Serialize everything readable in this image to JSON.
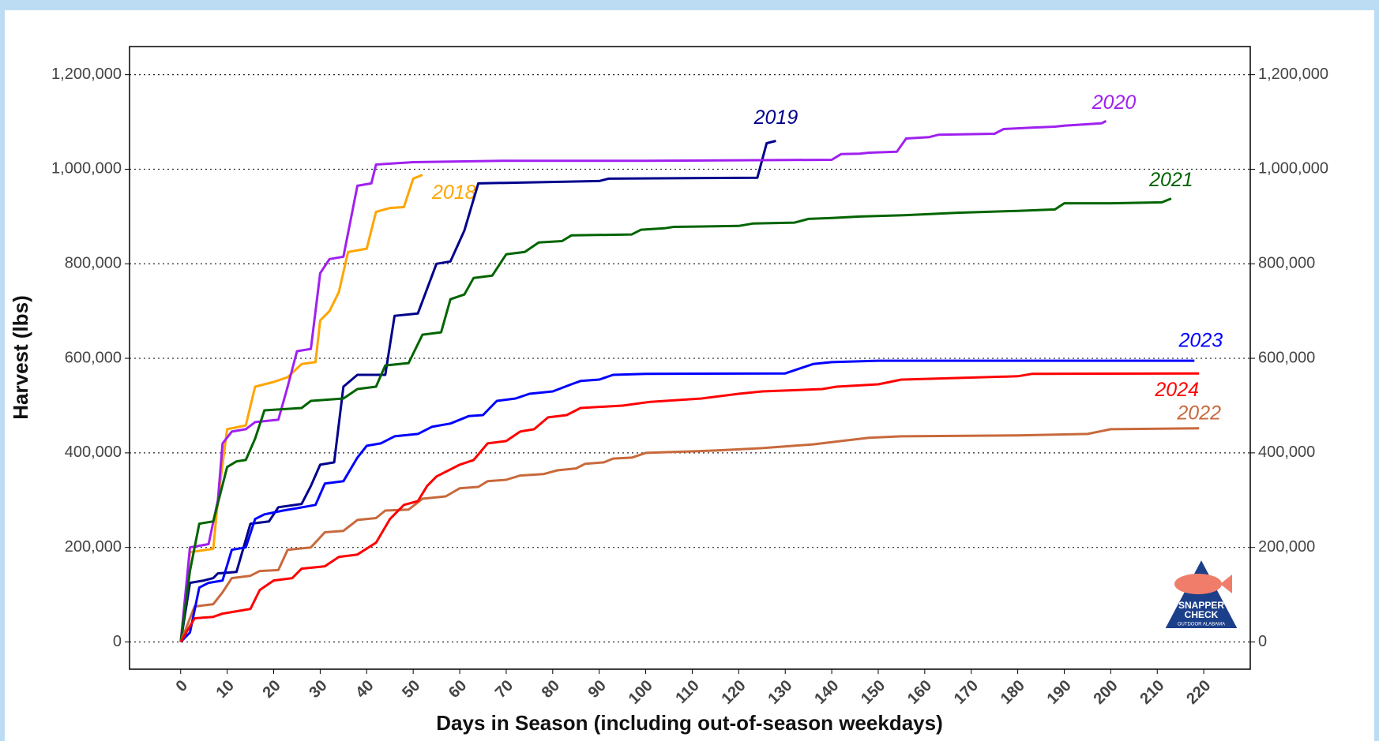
{
  "chart_data": {
    "type": "line",
    "x_label": "Days in Season (including out-of-season weekdays)",
    "y_label": "Harvest (lbs)",
    "xlim": [
      -11,
      230
    ],
    "ylim": [
      -57600,
      1259500
    ],
    "y2lim": [
      -57600,
      1259500
    ],
    "xticks": [
      0,
      10,
      20,
      30,
      40,
      50,
      60,
      70,
      80,
      90,
      100,
      110,
      120,
      130,
      140,
      150,
      160,
      170,
      180,
      190,
      200,
      210,
      220
    ],
    "yticks": [
      0,
      {
        "value": 200000,
        "label": "200,000"
      },
      {
        "value": 400000,
        "label": "400,000"
      },
      {
        "value": 600000,
        "label": "600,000"
      },
      {
        "value": 800000,
        "label": "800,000"
      },
      {
        "value": 1000000,
        "label": "1,000,000"
      },
      {
        "value": 1200000,
        "label": "1,200,000"
      }
    ],
    "y2ticks": [
      0,
      {
        "value": 200000,
        "label": "200,000"
      },
      {
        "value": 400000,
        "label": "400,000"
      },
      {
        "value": 600000,
        "label": "600,000"
      },
      {
        "value": 800000,
        "label": "800,000"
      },
      {
        "value": 1000000,
        "label": "1,000,000"
      },
      {
        "value": 1200000,
        "label": "1,200,000"
      }
    ],
    "grid": true,
    "series": [
      {
        "name": "2018",
        "color": "#ffa500",
        "x": [
          0,
          2,
          7,
          8,
          10,
          14,
          16,
          20,
          23,
          26,
          29,
          30,
          32,
          34,
          36,
          40,
          42,
          45,
          48,
          50,
          52
        ],
        "values": [
          0,
          190000,
          197000,
          300000,
          450000,
          458000,
          540000,
          550000,
          560000,
          588000,
          592000,
          680000,
          700000,
          740000,
          825000,
          832000,
          910000,
          918000,
          920000,
          980000,
          988000
        ]
      },
      {
        "name": "2019",
        "color": "#00008b",
        "x": [
          0,
          2,
          5,
          7,
          8,
          12,
          15,
          19,
          21,
          26,
          28,
          30,
          33,
          35,
          38,
          44,
          46,
          51,
          55,
          58,
          61,
          64,
          90,
          92,
          124,
          126,
          128
        ],
        "values": [
          0,
          125000,
          130000,
          135000,
          145000,
          148000,
          250000,
          255000,
          285000,
          292000,
          330000,
          375000,
          380000,
          540000,
          565000,
          565000,
          690000,
          695000,
          800000,
          805000,
          870000,
          970000,
          975000,
          980000,
          982000,
          1055000,
          1060000
        ]
      },
      {
        "name": "2020",
        "color": "#a020f0",
        "x": [
          0,
          2,
          6,
          8,
          9,
          11,
          14,
          16,
          21,
          23,
          25,
          28,
          30,
          32,
          35,
          38,
          41,
          42,
          50,
          70,
          100,
          140,
          142,
          146,
          148,
          154,
          156,
          161,
          163,
          175,
          177,
          183,
          188,
          190,
          198,
          199
        ],
        "values": [
          0,
          200000,
          207000,
          300000,
          420000,
          445000,
          450000,
          465000,
          470000,
          540000,
          615000,
          620000,
          780000,
          810000,
          815000,
          965000,
          970000,
          1010000,
          1015000,
          1018000,
          1018000,
          1020000,
          1032000,
          1033000,
          1035000,
          1037000,
          1065000,
          1068000,
          1073000,
          1075000,
          1085000,
          1088000,
          1090000,
          1092000,
          1097000,
          1102000
        ]
      },
      {
        "name": "2021",
        "color": "#006400",
        "x": [
          0,
          2,
          4,
          7,
          10,
          12,
          14,
          16,
          18,
          26,
          28,
          35,
          38,
          42,
          44,
          49,
          52,
          56,
          58,
          61,
          63,
          67,
          70,
          74,
          77,
          82,
          84,
          97,
          99,
          104,
          106,
          120,
          123,
          132,
          135,
          140,
          146,
          156,
          167,
          180,
          188,
          190,
          200,
          211,
          213
        ],
        "values": [
          0,
          150000,
          250000,
          255000,
          370000,
          382000,
          385000,
          430000,
          490000,
          495000,
          510000,
          515000,
          535000,
          540000,
          585000,
          590000,
          650000,
          655000,
          725000,
          735000,
          770000,
          775000,
          820000,
          825000,
          845000,
          848000,
          860000,
          862000,
          872000,
          875000,
          878000,
          880000,
          885000,
          887000,
          895000,
          897000,
          900000,
          903000,
          908000,
          912000,
          915000,
          928000,
          928000,
          930000,
          938000
        ]
      },
      {
        "name": "2022",
        "color": "#c8693c",
        "x": [
          0,
          3,
          7,
          9,
          11,
          15,
          17,
          21,
          23,
          28,
          31,
          35,
          38,
          42,
          44,
          49,
          52,
          57,
          60,
          64,
          66,
          70,
          73,
          78,
          81,
          85,
          87,
          91,
          93,
          97,
          100,
          115,
          125,
          136,
          142,
          148,
          155,
          180,
          195,
          200,
          219
        ],
        "values": [
          0,
          75000,
          80000,
          105000,
          135000,
          140000,
          150000,
          152000,
          195000,
          200000,
          232000,
          235000,
          258000,
          262000,
          278000,
          280000,
          303000,
          308000,
          325000,
          328000,
          340000,
          343000,
          352000,
          355000,
          363000,
          367000,
          377000,
          380000,
          388000,
          390000,
          400000,
          405000,
          410000,
          418000,
          425000,
          432000,
          435000,
          437000,
          440000,
          450000,
          452000
        ]
      },
      {
        "name": "2023",
        "color": "#0000ff",
        "x": [
          0,
          2,
          4,
          6,
          9,
          11,
          14,
          16,
          18,
          22,
          25,
          29,
          31,
          35,
          38,
          40,
          43,
          46,
          51,
          54,
          58,
          62,
          65,
          68,
          72,
          75,
          80,
          84,
          86,
          90,
          93,
          100,
          130,
          133,
          136,
          140,
          150,
          218
        ],
        "values": [
          0,
          20000,
          115000,
          125000,
          130000,
          195000,
          200000,
          260000,
          270000,
          278000,
          283000,
          290000,
          335000,
          340000,
          390000,
          415000,
          420000,
          435000,
          440000,
          455000,
          462000,
          478000,
          480000,
          510000,
          515000,
          525000,
          530000,
          545000,
          552000,
          555000,
          565000,
          567000,
          568000,
          578000,
          588000,
          592000,
          595000,
          595000
        ]
      },
      {
        "name": "2024",
        "color": "#ff0000",
        "x": [
          0,
          3,
          7,
          9,
          12,
          15,
          17,
          20,
          24,
          26,
          31,
          34,
          38,
          42,
          45,
          48,
          51,
          53,
          55,
          60,
          63,
          66,
          70,
          73,
          76,
          79,
          83,
          86,
          95,
          101,
          112,
          120,
          125,
          138,
          141,
          150,
          155,
          180,
          183,
          219
        ],
        "values": [
          0,
          50000,
          53000,
          60000,
          65000,
          70000,
          110000,
          130000,
          135000,
          155000,
          160000,
          180000,
          185000,
          210000,
          260000,
          290000,
          298000,
          330000,
          350000,
          375000,
          385000,
          420000,
          425000,
          445000,
          450000,
          475000,
          480000,
          495000,
          500000,
          508000,
          515000,
          525000,
          530000,
          535000,
          540000,
          545000,
          555000,
          562000,
          567000,
          568000
        ]
      }
    ],
    "logo": {
      "line1": "SNAPPER",
      "line2": "CHECK",
      "line3": "OUTDOOR ALABAMA"
    }
  }
}
